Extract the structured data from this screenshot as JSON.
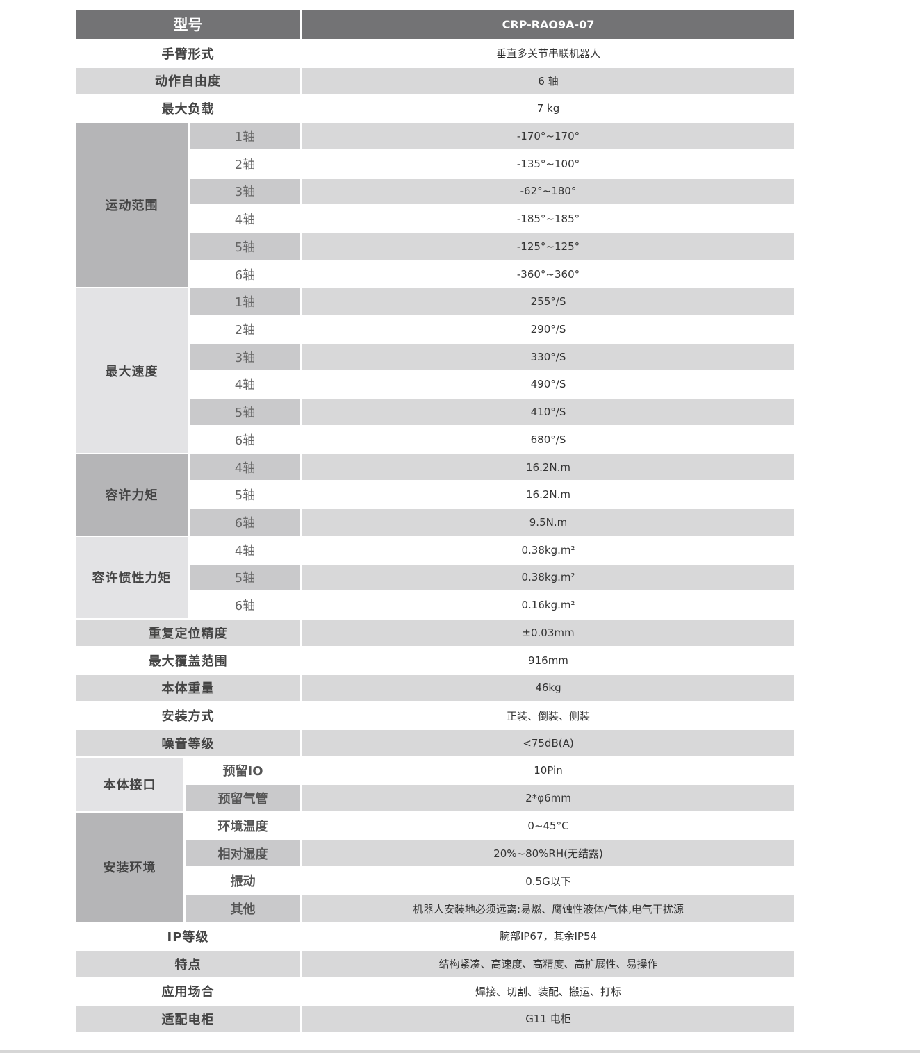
{
  "header": {
    "label": "型号",
    "model": "CRP-RAO9A-07"
  },
  "colors": {
    "header": "#737375",
    "row_gray": "#d8d8d9",
    "group_dark": "#b5b5b7",
    "group_light": "#e3e3e5"
  },
  "rows": [
    {
      "label": "手臂形式",
      "value": "垂直多关节串联机器人"
    },
    {
      "label": "动作自由度",
      "value": "6 轴"
    },
    {
      "label": "最大负载",
      "value": "7 kg"
    },
    {
      "group": "运动范围",
      "tone": "dark",
      "items": [
        {
          "label": "1轴",
          "value": "-170°~170°"
        },
        {
          "label": "2轴",
          "value": "-135°~100°"
        },
        {
          "label": "3轴",
          "value": "-62°~180°"
        },
        {
          "label": "4轴",
          "value": "-185°~185°"
        },
        {
          "label": "5轴",
          "value": "-125°~125°"
        },
        {
          "label": "6轴",
          "value": "-360°~360°"
        }
      ]
    },
    {
      "group": "最大速度",
      "tone": "light",
      "items": [
        {
          "label": "1轴",
          "value": "255°/S"
        },
        {
          "label": "2轴",
          "value": "290°/S"
        },
        {
          "label": "3轴",
          "value": "330°/S"
        },
        {
          "label": "4轴",
          "value": "490°/S"
        },
        {
          "label": "5轴",
          "value": "410°/S"
        },
        {
          "label": "6轴",
          "value": "680°/S"
        }
      ]
    },
    {
      "group": "容许力矩",
      "tone": "dark",
      "items": [
        {
          "label": "4轴",
          "value": "16.2N.m"
        },
        {
          "label": "5轴",
          "value": "16.2N.m"
        },
        {
          "label": "6轴",
          "value": "9.5N.m"
        }
      ]
    },
    {
      "group": "容许惯性力矩",
      "tone": "light",
      "items": [
        {
          "label": "4轴",
          "value": "0.38kg.m²"
        },
        {
          "label": "5轴",
          "value": "0.38kg.m²"
        },
        {
          "label": "6轴",
          "value": "0.16kg.m²"
        }
      ]
    },
    {
      "label": "重复定位精度",
      "value": "±0.03mm"
    },
    {
      "label": "最大覆盖范围",
      "value": "916mm"
    },
    {
      "label": "本体重量",
      "value": "46kg"
    },
    {
      "label": "安装方式",
      "value": "正装、倒装、侧装"
    },
    {
      "label": "噪音等级",
      "value": "<75dB(A)"
    },
    {
      "group": "本体接口",
      "tone": "light",
      "narrow": true,
      "items": [
        {
          "label": "预留IO",
          "value": "10Pin"
        },
        {
          "label": "预留气管",
          "value": "2*φ6mm"
        }
      ]
    },
    {
      "group": "安装环境",
      "tone": "dark",
      "narrow": true,
      "items": [
        {
          "label": "环境温度",
          "value": "0~45°C"
        },
        {
          "label": "相对湿度",
          "value": "20%~80%RH(无结露)"
        },
        {
          "label": "振动",
          "value": "0.5G以下"
        },
        {
          "label": "其他",
          "value": "机器人安装地必须远离:易燃、腐蚀性液体/气体,电气干扰源"
        }
      ]
    },
    {
      "label": "IP等级",
      "value": "腕部IP67，其余IP54"
    },
    {
      "label": "特点",
      "value": "结构紧凑、高速度、高精度、高扩展性、易操作"
    },
    {
      "label": "应用场合",
      "value": "焊接、切割、装配、搬运、打标"
    },
    {
      "label": "适配电柜",
      "value": "G11  电柜"
    }
  ]
}
